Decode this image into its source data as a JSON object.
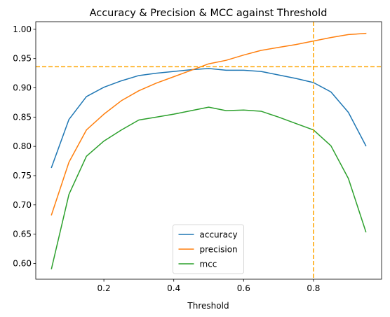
{
  "chart_data": {
    "type": "line",
    "title": "Accuracy & Precision & MCC against Threshold",
    "xlabel": "Threshold",
    "ylabel": "",
    "xlim": [
      0.005,
      0.995
    ],
    "ylim": [
      0.573,
      1.013
    ],
    "xticks": [
      0.2,
      0.4,
      0.6,
      0.8
    ],
    "xtick_labels": [
      "0.2",
      "0.4",
      "0.6",
      "0.8"
    ],
    "yticks": [
      0.6,
      0.65,
      0.7,
      0.75,
      0.8,
      0.85,
      0.9,
      0.95,
      1.0
    ],
    "ytick_labels": [
      "0.60",
      "0.65",
      "0.70",
      "0.75",
      "0.80",
      "0.85",
      "0.90",
      "0.95",
      "1.00"
    ],
    "grid": false,
    "legend_position": "lower center",
    "x": [
      0.05,
      0.1,
      0.15,
      0.2,
      0.25,
      0.3,
      0.35,
      0.4,
      0.45,
      0.5,
      0.55,
      0.6,
      0.65,
      0.7,
      0.75,
      0.8,
      0.85,
      0.9,
      0.95
    ],
    "series": [
      {
        "name": "accuracy",
        "color": "#1f77b4",
        "values": [
          0.764,
          0.846,
          0.885,
          0.901,
          0.912,
          0.921,
          0.925,
          0.928,
          0.931,
          0.933,
          0.93,
          0.93,
          0.928,
          0.922,
          0.916,
          0.909,
          0.893,
          0.858,
          0.801
        ]
      },
      {
        "name": "precision",
        "color": "#ff7f0e",
        "values": [
          0.683,
          0.773,
          0.828,
          0.855,
          0.878,
          0.895,
          0.908,
          0.919,
          0.93,
          0.941,
          0.947,
          0.956,
          0.964,
          0.969,
          0.974,
          0.98,
          0.986,
          0.991,
          0.993
        ]
      },
      {
        "name": "mcc",
        "color": "#2ca02c",
        "values": [
          0.591,
          0.718,
          0.783,
          0.809,
          0.828,
          0.845,
          0.85,
          0.855,
          0.861,
          0.867,
          0.861,
          0.862,
          0.86,
          0.85,
          0.839,
          0.828,
          0.801,
          0.745,
          0.654
        ]
      }
    ],
    "reference_lines": {
      "color": "#ffa500",
      "horizontal_y": 0.936,
      "vertical_x": 0.8
    }
  }
}
